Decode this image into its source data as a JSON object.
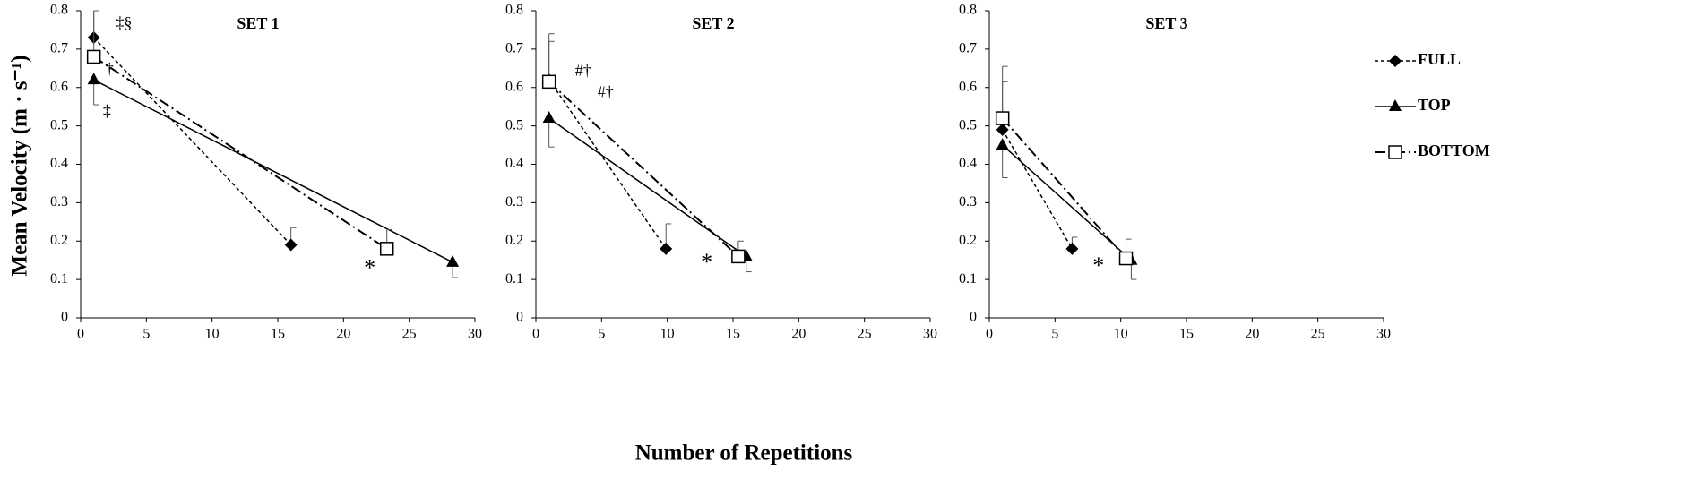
{
  "chart_data": [
    {
      "type": "line",
      "title": "SET 1",
      "ylabel": "Mean Velocity (m · s⁻¹)",
      "xlim": [
        0,
        30
      ],
      "xticks": [
        0,
        5,
        10,
        15,
        20,
        25,
        30
      ],
      "ylim": [
        0,
        0.8
      ],
      "yticks": [
        0,
        0.1,
        0.2,
        0.3,
        0.4,
        0.5,
        0.6,
        0.7,
        0.8
      ],
      "series": [
        {
          "color": "#000000",
          "marker": "diamond",
          "dash": "4,3",
          "error_direction": "up",
          "x": [
            1,
            16
          ],
          "values": [
            0.73,
            0.19
          ],
          "errors": [
            0.07,
            0.045
          ]
        },
        {
          "color": "#000000",
          "marker": "triangle",
          "dash": "none",
          "error_direction": "down",
          "x": [
            1,
            28.3
          ],
          "values": [
            0.62,
            0.145
          ],
          "errors": [
            0.065,
            0.04
          ]
        },
        {
          "color": "#000000",
          "marker": "square",
          "dash": "12,4,2,4",
          "error_direction": "up",
          "x": [
            1,
            23.3
          ],
          "values": [
            0.68,
            0.18
          ],
          "errors": [
            0.12,
            0.05
          ]
        }
      ],
      "annotations": [
        "‡§",
        "†",
        "‡",
        "*"
      ]
    },
    {
      "type": "line",
      "title": "SET 2",
      "xlabel": "Number of Repetitions",
      "xlim": [
        0,
        30
      ],
      "xticks": [
        0,
        5,
        10,
        15,
        20,
        25,
        30
      ],
      "ylim": [
        0,
        0.8
      ],
      "yticks": [
        0,
        0.1,
        0.2,
        0.3,
        0.4,
        0.5,
        0.6,
        0.7,
        0.8
      ],
      "series": [
        {
          "color": "#000000",
          "marker": "diamond",
          "dash": "4,3",
          "error_direction": "up",
          "x": [
            1,
            9.9
          ],
          "values": [
            0.62,
            0.18
          ],
          "errors": [
            0.1,
            0.065
          ]
        },
        {
          "color": "#000000",
          "marker": "triangle",
          "dash": "none",
          "error_direction": "down",
          "x": [
            1,
            16
          ],
          "values": [
            0.52,
            0.16
          ],
          "errors": [
            0.075,
            0.04
          ]
        },
        {
          "color": "#000000",
          "marker": "square",
          "dash": "12,4,2,4",
          "error_direction": "up",
          "x": [
            1,
            15.4
          ],
          "values": [
            0.615,
            0.16
          ],
          "errors": [
            0.125,
            0.04
          ]
        }
      ],
      "annotations": [
        "#†",
        "#†",
        "*"
      ]
    },
    {
      "type": "line",
      "title": "SET 3",
      "legend": "right",
      "xlim": [
        0,
        30
      ],
      "xticks": [
        0,
        5,
        10,
        15,
        20,
        25,
        30
      ],
      "ylim": [
        0,
        0.8
      ],
      "yticks": [
        0,
        0.1,
        0.2,
        0.3,
        0.4,
        0.5,
        0.6,
        0.7,
        0.8
      ],
      "series": [
        {
          "name": "FULL",
          "color": "#000000",
          "marker": "diamond",
          "dash": "4,3",
          "error_direction": "up",
          "x": [
            1,
            6.3
          ],
          "values": [
            0.49,
            0.18
          ],
          "errors": [
            0.125,
            0.03
          ]
        },
        {
          "name": "TOP",
          "color": "#000000",
          "marker": "triangle",
          "dash": "none",
          "error_direction": "down",
          "x": [
            1,
            10.8
          ],
          "values": [
            0.45,
            0.15
          ],
          "errors": [
            0.085,
            0.05
          ]
        },
        {
          "name": "BOTTOM",
          "color": "#000000",
          "marker": "square",
          "dash": "12,4,2,4",
          "error_direction": "up",
          "x": [
            1,
            10.4
          ],
          "values": [
            0.52,
            0.155
          ],
          "errors": [
            0.135,
            0.05
          ]
        }
      ],
      "annotations": [
        "*"
      ]
    }
  ]
}
